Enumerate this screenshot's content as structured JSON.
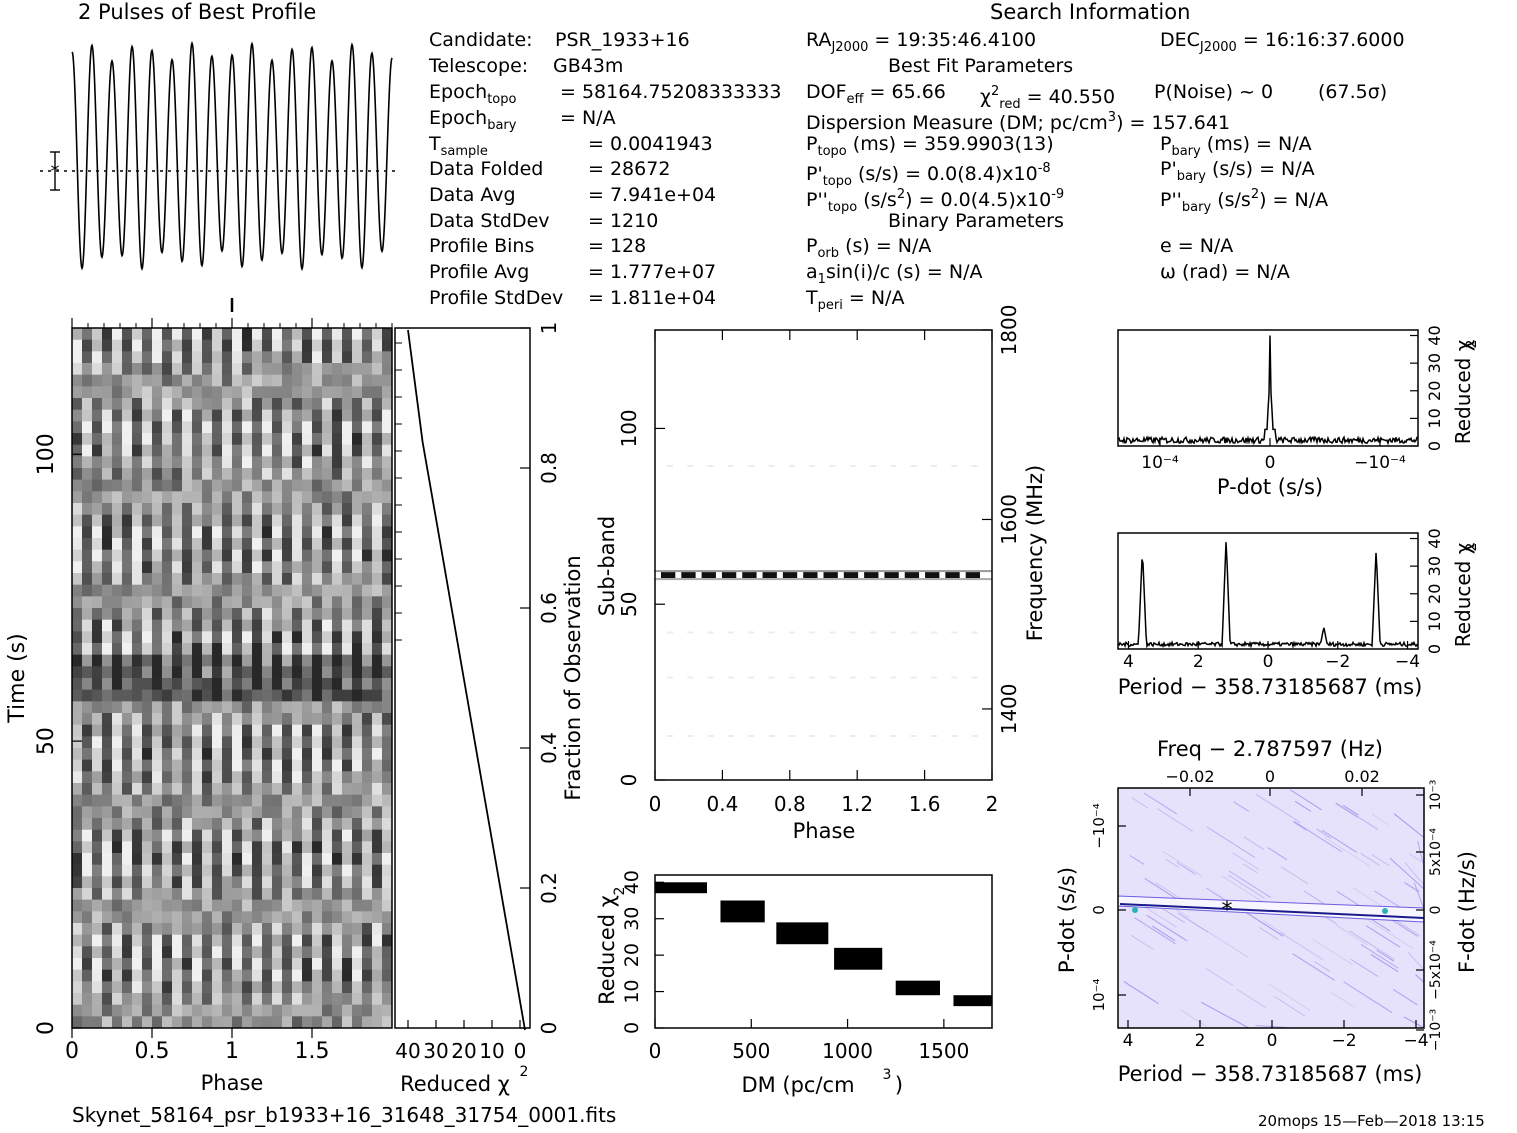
{
  "header": {
    "profile_title": "2 Pulses of Best Profile",
    "search_title": "Search Information",
    "best_fit_title": "Best Fit Parameters",
    "binary_title": "Binary Parameters"
  },
  "params": {
    "candidate_label": "Candidate:",
    "candidate": "PSR_1933+16",
    "telescope_label": "Telescope:",
    "telescope": "GB43m",
    "epoch_topo_label": "Epoch",
    "epoch_topo_sub": "topo",
    "epoch_topo": "= 58164.75208333333",
    "epoch_bary_label": "Epoch",
    "epoch_bary_sub": "bary",
    "epoch_bary": "= N/A",
    "t_sample_label": "T",
    "t_sample_sub": "sample",
    "t_sample": "= 0.0041943",
    "data_folded_label": "Data Folded",
    "data_folded": "= 28672",
    "data_avg_label": "Data Avg",
    "data_avg": "= 7.941e+04",
    "data_std_label": "Data StdDev",
    "data_std": "= 1210",
    "profile_bins_label": "Profile Bins",
    "profile_bins": "= 128",
    "profile_avg_label": "Profile Avg",
    "profile_avg": "= 1.777e+07",
    "profile_std_label": "Profile StdDev",
    "profile_std": "= 1.811e+04"
  },
  "search": {
    "ra": "= 19:35:46.4100",
    "dec": "= 16:16:37.6000",
    "dof_eff": "= 65.66",
    "chi2_red": "= 40.550",
    "p_noise": "P(Noise) ~ 0",
    "sigma": "(67.5σ)",
    "dm_line": "Dispersion Measure (DM; pc/cm",
    "dm_value": ") = 157.641",
    "p_topo": "(ms) = 359.9903(13)",
    "p_bary": "(ms) = N/A",
    "pd_topo": "(s/s) = 0.0(8.4)x10",
    "pd_topo_exp": "-8",
    "pd_bary": "(s/s) = N/A",
    "pdd_topo": "(s/s",
    "pdd_topo_val": ") = 0.0(4.5)x10",
    "pdd_topo_exp": "-9",
    "pdd_bary": ") = N/A",
    "p_orb": "(s) = N/A",
    "a1": "a",
    "a1_rest": "sin(i)/c (s) = N/A",
    "t_peri": "= N/A",
    "e": "e = N/A",
    "omega": "ω (rad) = N/A"
  },
  "footer": {
    "filename": "Skynet_58164_psr_b1933+16_31648_31754_0001.fits",
    "stamp": "20mops 15—Feb—2018 13:15"
  },
  "chart_data": [
    {
      "type": "line",
      "name": "profile",
      "title": "2 Pulses of Best Profile",
      "pulses_shown": 16,
      "note_phase_cycles": 2
    },
    {
      "type": "heatmap",
      "name": "time-phase",
      "xlabel": "Phase",
      "ylabel": "Time (s)",
      "xlim": [
        0,
        2
      ],
      "ylim": [
        0,
        122
      ],
      "xticks": [
        "0",
        "0.5",
        "1",
        "1.5"
      ],
      "yticks": [
        "0",
        "50",
        "100"
      ],
      "colormap": "grayscale"
    },
    {
      "type": "line",
      "name": "time-chi2",
      "xlabel": "Reduced χ",
      "xlabel_sup": "2",
      "xticks": [
        "40",
        "30",
        "20",
        "10",
        "0"
      ],
      "y2label": "Fraction of Observation",
      "y2ticks": [
        "0",
        "0.2",
        "0.4",
        "0.6",
        "0.8",
        "1"
      ],
      "x": [
        0,
        5,
        10,
        15,
        20,
        25,
        30,
        35,
        40
      ],
      "y": [
        0,
        0.12,
        0.24,
        0.36,
        0.48,
        0.6,
        0.72,
        0.84,
        1
      ]
    },
    {
      "type": "heatmap",
      "name": "subband-phase",
      "xlabel": "Phase",
      "ylabel": "Sub-band",
      "xlim": [
        0,
        2
      ],
      "ylim": [
        0,
        128
      ],
      "xticks": [
        "0",
        "0.4",
        "0.8",
        "1.2",
        "1.6",
        "2"
      ],
      "yticks": [
        "0",
        "50",
        "100"
      ],
      "y2label": "Frequency (MHz)",
      "y2ticks": [
        "1400",
        "1600",
        "1800"
      ],
      "bright_subband": 58,
      "colormap": "grayscale"
    },
    {
      "type": "area",
      "name": "dm-chi2",
      "xlabel": "DM (pc/cm",
      "xlabel_sup": "3",
      "xlabel_end": ")",
      "ylabel": "Reduced χ",
      "ylabel_sup": "2",
      "xlim": [
        0,
        1750
      ],
      "ylim": [
        0,
        42
      ],
      "xticks": [
        "0",
        "500",
        "1000",
        "1500"
      ],
      "yticks": [
        "0",
        "10",
        "20",
        "30",
        "40"
      ],
      "steps": [
        {
          "x0": 0,
          "x1": 270,
          "y0": 37,
          "y1": 40
        },
        {
          "x0": 340,
          "x1": 570,
          "y0": 29,
          "y1": 35
        },
        {
          "x0": 630,
          "x1": 900,
          "y0": 23,
          "y1": 29
        },
        {
          "x0": 930,
          "x1": 1180,
          "y0": 16,
          "y1": 22
        },
        {
          "x0": 1250,
          "x1": 1480,
          "y0": 9,
          "y1": 13
        },
        {
          "x0": 1550,
          "x1": 1750,
          "y0": 6,
          "y1": 9
        }
      ]
    },
    {
      "type": "line",
      "name": "pdot-chi2",
      "xlabel": "P-dot (s/s)",
      "xticks": [
        "10⁻⁴",
        "0",
        "−10⁻⁴"
      ],
      "y2label": "Reduced χ",
      "y2label_sup": "2",
      "ylim": [
        0,
        42
      ],
      "yticks": [
        "0",
        "10",
        "20",
        "30",
        "40"
      ],
      "peak_x": 0,
      "peak_y": 40
    },
    {
      "type": "line",
      "name": "period-chi2",
      "xlabel": "Period − 358.73185687 (ms)",
      "xlim": [
        4.3,
        -4.3
      ],
      "xticks": [
        "4",
        "2",
        "0",
        "−2",
        "−4"
      ],
      "y2label": "Reduced χ",
      "y2label_sup": "2",
      "ylim": [
        0,
        42
      ],
      "yticks": [
        "0",
        "10",
        "20",
        "30",
        "40"
      ],
      "peaks": [
        {
          "x": 3.6,
          "y": 36
        },
        {
          "x": 1.2,
          "y": 40
        },
        {
          "x": -1.6,
          "y": 8
        },
        {
          "x": -3.1,
          "y": 36
        }
      ]
    },
    {
      "type": "heatmap",
      "name": "period-pdot",
      "xlabel": "Period − 358.73185687 (ms)",
      "xticks": [
        "4",
        "2",
        "0",
        "−2",
        "−4"
      ],
      "ylabel": "P-dot (s/s)",
      "yticks": [
        "10⁻⁴",
        "0",
        "−10⁻⁴"
      ],
      "x2label": "Freq − 2.787597 (Hz)",
      "x2ticks": [
        "−0.02",
        "0",
        "0.02"
      ],
      "y2label": "F-dot (Hz/s)",
      "y2ticks": [
        "−10⁻³",
        "−5x10⁻⁴",
        "0",
        "5x10⁻⁴",
        "10⁻³"
      ],
      "colormap": "purple",
      "best_marker": {
        "x": 1.2,
        "y": 0
      }
    }
  ]
}
